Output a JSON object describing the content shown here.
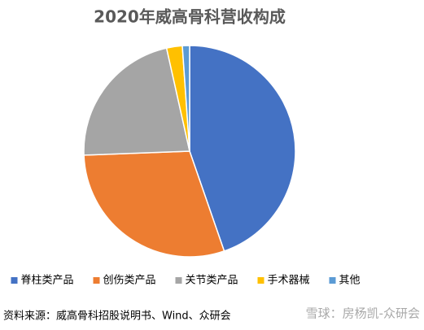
{
  "chart_data": {
    "type": "pie",
    "title": "2020年威高骨科营收构成",
    "categories": [
      "脊柱类产品",
      "创伤类产品",
      "关节类产品",
      "手术器械",
      "其他"
    ],
    "values": [
      44.7,
      29.7,
      22.1,
      2.4,
      1.1
    ],
    "colors": [
      "#4472c4",
      "#ed7d31",
      "#a5a5a5",
      "#ffc000",
      "#5b9bd5"
    ],
    "legend": "bottom",
    "source": "资料来源：威高骨科招股说明书、Wind、众研会",
    "watermark": "雪球：房杨凯-众研会"
  }
}
